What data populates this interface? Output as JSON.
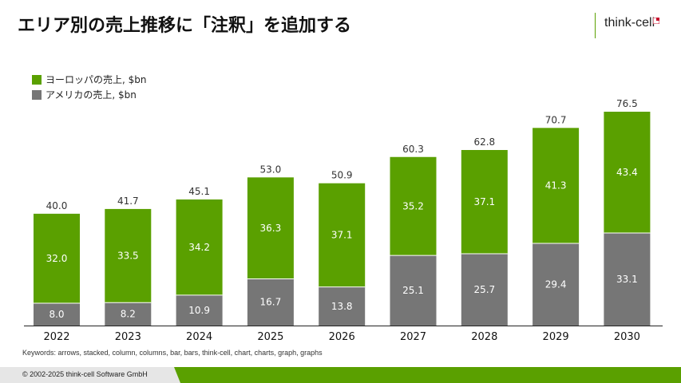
{
  "slide": {
    "title": "エリア別の売上推移に「注釈」を追加する",
    "logo_text": "think-cell",
    "keywords": "Keywords: arrows, stacked, column, columns, bar, bars, think-cell, chart, charts, graph, graphs",
    "copyright": "© 2002-2025 think-cell Software GmbH"
  },
  "colors": {
    "europe": "#5aa000",
    "america": "#767676",
    "footer_green": "#5aa000",
    "footer_grey": "#e6e6e6",
    "logo_red": "#c8102e"
  },
  "chart_data": {
    "type": "bar",
    "stacked": true,
    "categories": [
      "2022",
      "2023",
      "2024",
      "2025",
      "2026",
      "2027",
      "2028",
      "2029",
      "2030"
    ],
    "series": [
      {
        "name": "アメリカの売上, $bn",
        "values": [
          8.0,
          8.2,
          10.9,
          16.7,
          13.8,
          25.1,
          25.7,
          29.4,
          33.1
        ]
      },
      {
        "name": "ヨーロッパの売上, $bn",
        "values": [
          32.0,
          33.5,
          34.2,
          36.3,
          37.1,
          35.2,
          37.1,
          41.3,
          43.4
        ]
      }
    ],
    "totals": [
      40.0,
      41.7,
      45.1,
      53.0,
      50.9,
      60.3,
      62.8,
      70.7,
      76.5
    ],
    "legend_position": "top-left",
    "ylim": [
      0,
      76.5
    ],
    "grid": false
  }
}
